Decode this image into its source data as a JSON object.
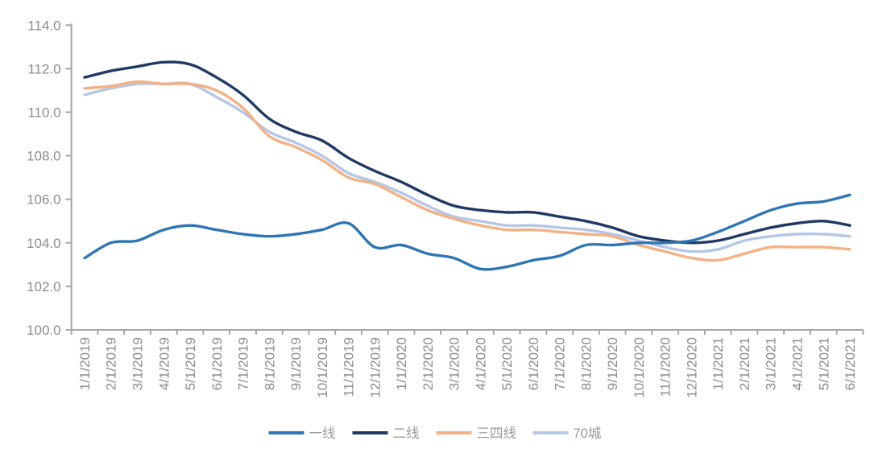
{
  "chart_data": {
    "type": "line",
    "title": "",
    "xlabel": "",
    "ylabel": "",
    "ylim": [
      100.0,
      114.0
    ],
    "ytick_step": 2.0,
    "ytick_labels": [
      "100.0",
      "102.0",
      "104.0",
      "106.0",
      "108.0",
      "110.0",
      "112.0",
      "114.0"
    ],
    "grid": false,
    "legend_position": "bottom-center",
    "axis_color": "#a6a6a6",
    "tick_label_color": "#8c8c8c",
    "legend_text_color": "#999999",
    "categories": [
      "1/1/2019",
      "2/1/2019",
      "3/1/2019",
      "4/1/2019",
      "5/1/2019",
      "6/1/2019",
      "7/1/2019",
      "8/1/2019",
      "9/1/2019",
      "10/1/2019",
      "11/1/2019",
      "12/1/2019",
      "1/1/2020",
      "2/1/2020",
      "3/1/2020",
      "4/1/2020",
      "5/1/2020",
      "6/1/2020",
      "7/1/2020",
      "8/1/2020",
      "9/1/2020",
      "10/1/2020",
      "11/1/2020",
      "12/1/2020",
      "1/1/2021",
      "2/1/2021",
      "3/1/2021",
      "4/1/2021",
      "5/1/2021",
      "6/1/2021"
    ],
    "series": [
      {
        "name": "70城",
        "color": "#b4c7e7",
        "values": [
          110.8,
          111.1,
          111.3,
          111.3,
          111.3,
          110.7,
          110.0,
          109.1,
          108.6,
          108.0,
          107.2,
          106.8,
          106.3,
          105.7,
          105.2,
          105.0,
          104.8,
          104.8,
          104.7,
          104.6,
          104.4,
          104.1,
          103.8,
          103.6,
          103.7,
          104.1,
          104.3,
          104.4,
          104.4,
          104.3
        ]
      },
      {
        "name": "三四线",
        "color": "#f4b183",
        "values": [
          111.1,
          111.2,
          111.4,
          111.3,
          111.3,
          111.0,
          110.2,
          108.9,
          108.4,
          107.8,
          107.0,
          106.7,
          106.1,
          105.5,
          105.1,
          104.8,
          104.6,
          104.6,
          104.5,
          104.4,
          104.3,
          103.9,
          103.6,
          103.3,
          103.2,
          103.5,
          103.8,
          103.8,
          103.8,
          103.7
        ]
      },
      {
        "name": "二线",
        "color": "#1f3864",
        "values": [
          111.6,
          111.9,
          112.1,
          112.3,
          112.2,
          111.6,
          110.8,
          109.7,
          109.1,
          108.7,
          107.9,
          107.3,
          106.8,
          106.2,
          105.7,
          105.5,
          105.4,
          105.4,
          105.2,
          105.0,
          104.7,
          104.3,
          104.1,
          104.0,
          104.1,
          104.4,
          104.7,
          104.9,
          105.0,
          104.8
        ]
      },
      {
        "name": "一线",
        "color": "#2e75b6",
        "values": [
          103.3,
          104.0,
          104.1,
          104.6,
          104.8,
          104.6,
          104.4,
          104.3,
          104.4,
          104.6,
          104.9,
          103.8,
          103.9,
          103.5,
          103.3,
          102.8,
          102.9,
          103.2,
          103.4,
          103.9,
          103.9,
          104.0,
          104.0,
          104.1,
          104.5,
          105.0,
          105.5,
          105.8,
          105.9,
          106.2
        ]
      }
    ],
    "legend_order": [
      "一线",
      "二线",
      "三四线",
      "70城"
    ]
  }
}
